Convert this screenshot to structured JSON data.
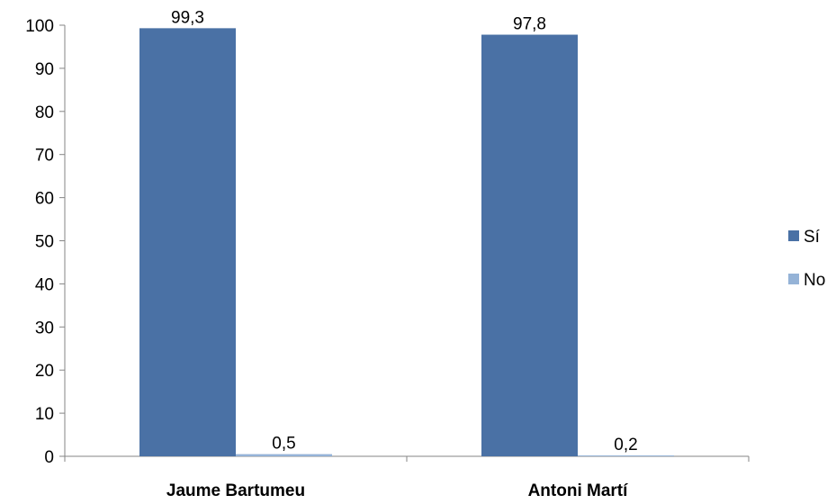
{
  "chart_data": {
    "type": "bar",
    "categories": [
      "Jaume Bartumeu",
      "Antoni Martí"
    ],
    "series": [
      {
        "name": "Sí",
        "values": [
          99.3,
          97.8
        ],
        "labels": [
          "99,3",
          "97,8"
        ],
        "color": "#4A71A5"
      },
      {
        "name": "No",
        "values": [
          0.5,
          0.2
        ],
        "labels": [
          "0,5",
          "0,2"
        ],
        "color": "#95B3D7"
      }
    ],
    "yticks": [
      "0",
      "10",
      "20",
      "30",
      "40",
      "50",
      "60",
      "70",
      "80",
      "90",
      "100"
    ],
    "ylim": [
      0,
      100
    ],
    "grid": false,
    "legend_position": "right"
  }
}
